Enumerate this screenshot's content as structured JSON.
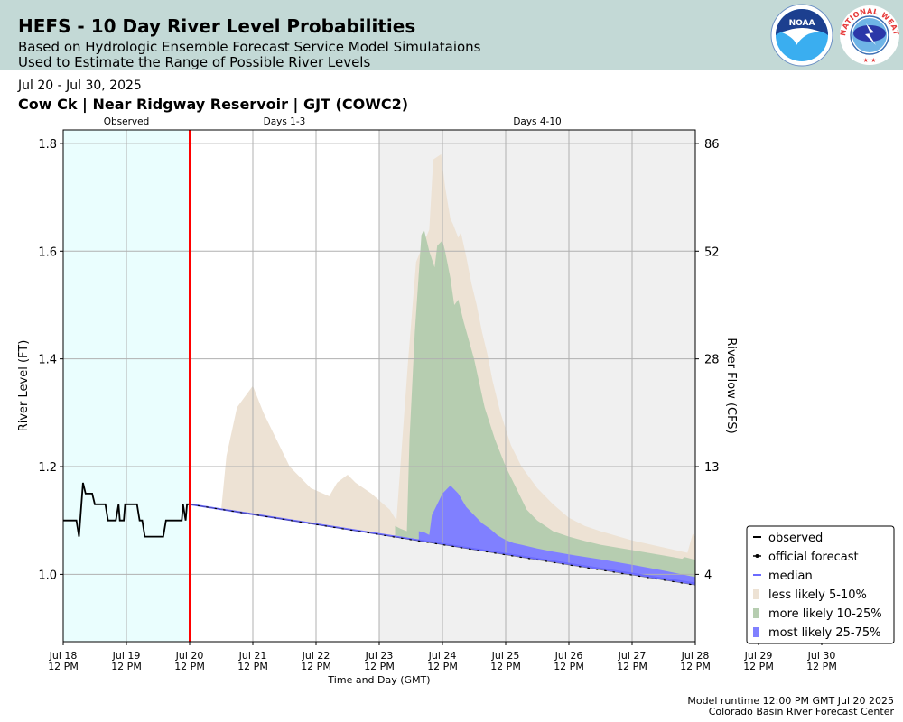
{
  "header": {
    "title": "HEFS - 10 Day River Level Probabilities",
    "subtitle_line1": "Based on Hydrologic Ensemble Forecast Service Model Simulataions",
    "subtitle_line2": "Used to Estimate the Range of Possible River Levels",
    "noaa_logo_text": "NOAA",
    "nws_logo_text": "NATIONAL WEATHER SERVICE"
  },
  "date_range": "Jul 20 - Jul 30, 2025",
  "station": "Cow Ck | Near Ridgway Reservoir | GJT (COWC2)",
  "footer": {
    "runtime": "Model runtime 12:00 PM GMT Jul 20 2025",
    "center": "Colorado Basin River Forecast Center"
  },
  "colors": {
    "observed_bg": "#eafefe",
    "days410_bg": "#f0f0f0",
    "now_line": "#ff0000",
    "observed": "#000000",
    "forecast": "#000000",
    "median": "#6b6bff",
    "band_5_10": "#ede2d4",
    "band_10_25": "#b6cdb0",
    "band_25_75": "#8080ff"
  },
  "chart_data": {
    "type": "area",
    "xlabel": "Time and Day (GMT)",
    "ylabel": "River Level (FT)",
    "y2label": "River Flow (CFS)",
    "xlim": [
      0,
      240
    ],
    "ylim": [
      0.875,
      1.825
    ],
    "grid": true,
    "legend_position": "bottom-right",
    "x_tick_labels": [
      [
        "Jul 18",
        "12 PM"
      ],
      [
        "Jul 19",
        "12 PM"
      ],
      [
        "Jul 20",
        "12 PM"
      ],
      [
        "Jul 21",
        "12 PM"
      ],
      [
        "Jul 22",
        "12 PM"
      ],
      [
        "Jul 23",
        "12 PM"
      ],
      [
        "Jul 24",
        "12 PM"
      ],
      [
        "Jul 25",
        "12 PM"
      ],
      [
        "Jul 26",
        "12 PM"
      ],
      [
        "Jul 27",
        "12 PM"
      ],
      [
        "Jul 28",
        "12 PM"
      ],
      [
        "Jul 29",
        "12 PM"
      ],
      [
        "Jul 30",
        "12 PM"
      ]
    ],
    "y_ticks": [
      "1.0",
      "1.2",
      "1.4",
      "1.6",
      "1.8"
    ],
    "y2_ticks": [
      {
        "value": "4",
        "level": 1.0
      },
      {
        "value": "13",
        "level": 1.2
      },
      {
        "value": "28",
        "level": 1.4
      },
      {
        "value": "52",
        "level": 1.6
      },
      {
        "value": "86",
        "level": 1.8
      }
    ],
    "periods": [
      {
        "label": "Observed",
        "start": 0,
        "end": 48
      },
      {
        "label": "Days 1-3",
        "start": 48,
        "end": 120
      },
      {
        "label": "Days 4-10",
        "start": 120,
        "end": 240
      }
    ],
    "now_x": 48,
    "legend": [
      {
        "label": "observed",
        "kind": "line"
      },
      {
        "label": "official forecast",
        "kind": "dotline"
      },
      {
        "label": "median",
        "kind": "median"
      },
      {
        "label": "less likely 5-10%",
        "kind": "band_5_10"
      },
      {
        "label": "more likely 10-25%",
        "kind": "band_10_25"
      },
      {
        "label": "most likely 25-75%",
        "kind": "band_25_75"
      }
    ],
    "observed": [
      [
        0,
        1.1
      ],
      [
        5,
        1.1
      ],
      [
        6,
        1.07
      ],
      [
        7.5,
        1.17
      ],
      [
        8.5,
        1.15
      ],
      [
        11,
        1.15
      ],
      [
        12,
        1.13
      ],
      [
        16,
        1.13
      ],
      [
        17,
        1.1
      ],
      [
        20,
        1.1
      ],
      [
        21,
        1.13
      ],
      [
        21.5,
        1.1
      ],
      [
        23,
        1.1
      ],
      [
        23.5,
        1.13
      ],
      [
        28,
        1.13
      ],
      [
        29,
        1.1
      ],
      [
        30,
        1.1
      ],
      [
        31,
        1.07
      ],
      [
        38,
        1.07
      ],
      [
        39,
        1.1
      ],
      [
        45,
        1.1
      ],
      [
        45.5,
        1.13
      ],
      [
        46.5,
        1.1
      ],
      [
        47,
        1.13
      ],
      [
        48,
        1.13
      ]
    ],
    "official_forecast": [
      [
        48,
        1.13
      ],
      [
        240,
        0.98
      ]
    ],
    "median": [
      [
        48,
        1.13
      ],
      [
        240,
        0.983
      ]
    ],
    "band_5_10_upper": [
      [
        48,
        1.13
      ],
      [
        60,
        1.12
      ],
      [
        62,
        1.22
      ],
      [
        66,
        1.31
      ],
      [
        72,
        1.35
      ],
      [
        76,
        1.3
      ],
      [
        81,
        1.25
      ],
      [
        86,
        1.2
      ],
      [
        94,
        1.16
      ],
      [
        101,
        1.145
      ],
      [
        104,
        1.17
      ],
      [
        108,
        1.185
      ],
      [
        111,
        1.17
      ],
      [
        117,
        1.15
      ],
      [
        124,
        1.12
      ],
      [
        126.5,
        1.1
      ],
      [
        131,
        1.4
      ],
      [
        134,
        1.58
      ],
      [
        139,
        1.64
      ],
      [
        140.5,
        1.77
      ],
      [
        142,
        1.775
      ],
      [
        143.5,
        1.78
      ],
      [
        145,
        1.72
      ],
      [
        146,
        1.69
      ],
      [
        147,
        1.66
      ],
      [
        148,
        1.65
      ],
      [
        150,
        1.625
      ],
      [
        151,
        1.635
      ],
      [
        153,
        1.59
      ],
      [
        155,
        1.54
      ],
      [
        157,
        1.5
      ],
      [
        159,
        1.45
      ],
      [
        161,
        1.41
      ],
      [
        163,
        1.36
      ],
      [
        166,
        1.3
      ],
      [
        170,
        1.24
      ],
      [
        174,
        1.2
      ],
      [
        180,
        1.16
      ],
      [
        186,
        1.13
      ],
      [
        192,
        1.105
      ],
      [
        198,
        1.09
      ],
      [
        204,
        1.08
      ],
      [
        216,
        1.063
      ],
      [
        228,
        1.05
      ],
      [
        237,
        1.04
      ],
      [
        239,
        1.075
      ],
      [
        240,
        1.07
      ]
    ],
    "band_5_10_lower": [
      [
        48,
        1.13
      ],
      [
        240,
        0.98
      ]
    ],
    "band_10_25_upper": [
      [
        126,
        1.09
      ],
      [
        128,
        1.085
      ],
      [
        130.5,
        1.08
      ],
      [
        131.5,
        1.25
      ],
      [
        133.5,
        1.45
      ],
      [
        136,
        1.63
      ],
      [
        137,
        1.64
      ],
      [
        139,
        1.6
      ],
      [
        141,
        1.57
      ],
      [
        142,
        1.61
      ],
      [
        144,
        1.62
      ],
      [
        145,
        1.6
      ],
      [
        147,
        1.55
      ],
      [
        148.5,
        1.5
      ],
      [
        150,
        1.51
      ],
      [
        152,
        1.47
      ],
      [
        156,
        1.4
      ],
      [
        160,
        1.31
      ],
      [
        164,
        1.25
      ],
      [
        168,
        1.2
      ],
      [
        172,
        1.16
      ],
      [
        176,
        1.12
      ],
      [
        180,
        1.1
      ],
      [
        186,
        1.08
      ],
      [
        192,
        1.07
      ],
      [
        198,
        1.062
      ],
      [
        204,
        1.055
      ],
      [
        216,
        1.045
      ],
      [
        228,
        1.035
      ],
      [
        235,
        1.029
      ],
      [
        236,
        1.032
      ],
      [
        240,
        1.027
      ]
    ],
    "band_10_25_lower": [
      [
        126,
        1.072
      ],
      [
        240,
        0.985
      ]
    ],
    "band_25_75_upper": [
      [
        135,
        1.08
      ],
      [
        137,
        1.078
      ],
      [
        139,
        1.073
      ],
      [
        140,
        1.11
      ],
      [
        144,
        1.15
      ],
      [
        147,
        1.165
      ],
      [
        150,
        1.15
      ],
      [
        153,
        1.125
      ],
      [
        156,
        1.11
      ],
      [
        159,
        1.095
      ],
      [
        162,
        1.085
      ],
      [
        165,
        1.072
      ],
      [
        168,
        1.064
      ],
      [
        171,
        1.058
      ],
      [
        174,
        1.055
      ],
      [
        180,
        1.048
      ],
      [
        186,
        1.042
      ],
      [
        192,
        1.037
      ],
      [
        204,
        1.028
      ],
      [
        216,
        1.018
      ],
      [
        228,
        1.007
      ],
      [
        240,
        0.995
      ]
    ],
    "band_25_75_lower": [
      [
        135,
        1.063
      ],
      [
        240,
        0.98
      ]
    ]
  }
}
